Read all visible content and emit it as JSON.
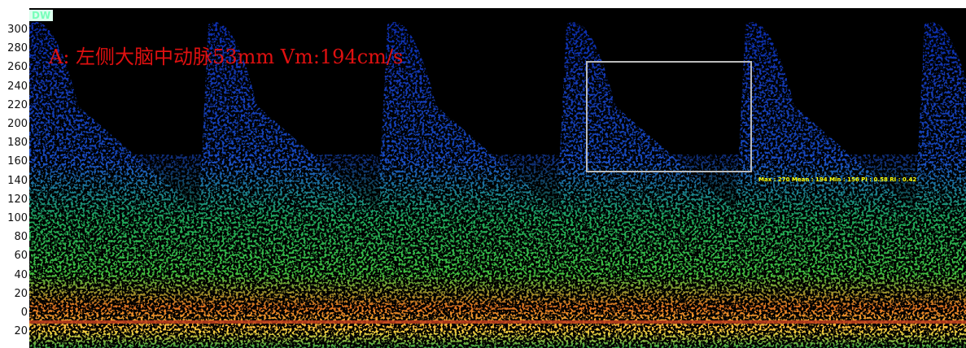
{
  "logo": "DW",
  "label": "A: 左侧大脑中动脉53mm Vm:194cm/s",
  "measurement": "Max : 270 Mean : 194 Min : 156 PI : 0.58 RI : 0.42",
  "axis": {
    "ticks": [
      "300",
      "280",
      "260",
      "240",
      "220",
      "200",
      "180",
      "160",
      "140",
      "120",
      "100",
      "80",
      "60",
      "40",
      "20",
      "0",
      "20"
    ]
  }
}
